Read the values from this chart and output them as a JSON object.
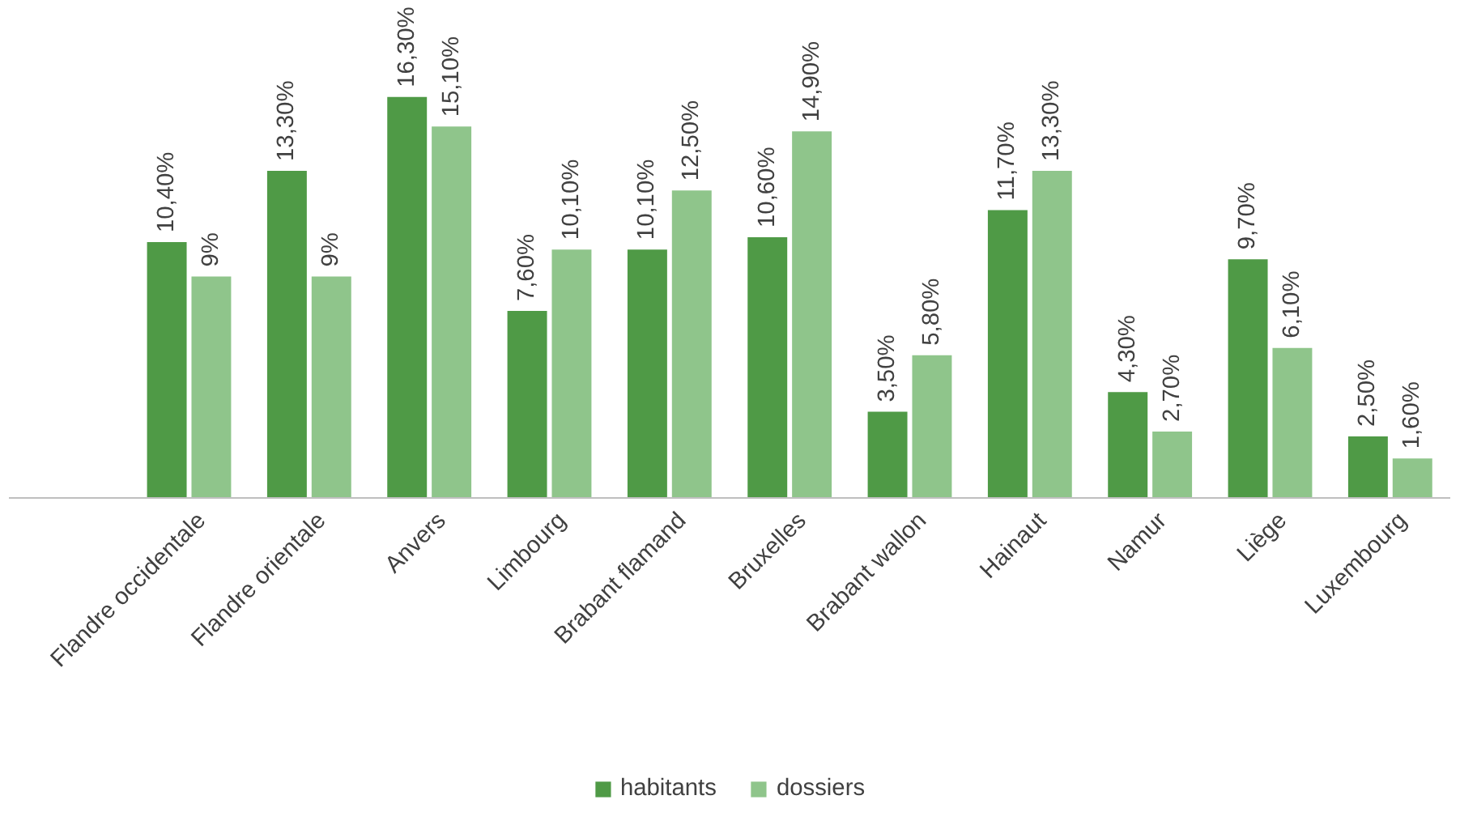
{
  "chart_data": {
    "type": "bar",
    "categories": [
      "Flandre occidentale",
      "Flandre orientale",
      "Anvers",
      "Limbourg",
      "Brabant flamand",
      "Bruxelles",
      "Brabant wallon",
      "Hainaut",
      "Namur",
      "Liège",
      "Luxembourg"
    ],
    "series": [
      {
        "name": "habitants",
        "color": "#4f9a46",
        "values": [
          10.4,
          13.3,
          16.3,
          7.6,
          10.1,
          10.6,
          3.5,
          11.7,
          4.3,
          9.7,
          2.5
        ],
        "value_labels": [
          "10,40%",
          "13,30%",
          "16,30%",
          "7,60%",
          "10,10%",
          "10,60%",
          "3,50%",
          "11,70%",
          "4,30%",
          "9,70%",
          "2,50%"
        ]
      },
      {
        "name": "dossiers",
        "color": "#8fc58b",
        "values": [
          9,
          9,
          15.1,
          10.1,
          12.5,
          14.9,
          5.8,
          13.3,
          2.7,
          6.1,
          1.6
        ],
        "value_labels": [
          "9%",
          "9%",
          "15,10%",
          "10,10%",
          "12,50%",
          "14,90%",
          "5,80%",
          "13,30%",
          "2,70%",
          "6,10%",
          "1,60%"
        ]
      }
    ],
    "legend": "bottom"
  }
}
